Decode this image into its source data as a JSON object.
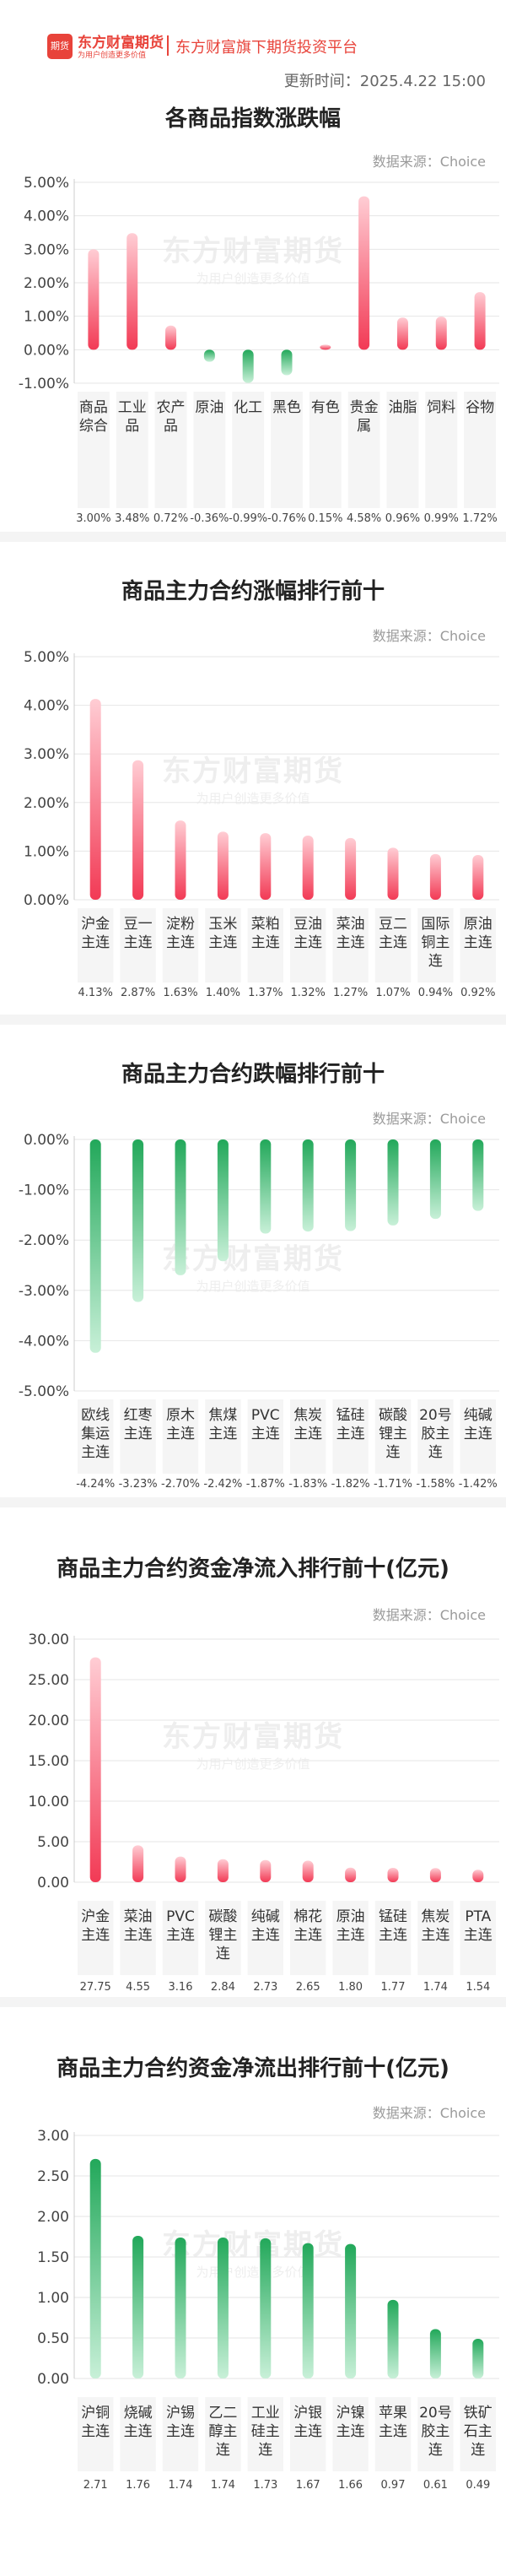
{
  "header": {
    "logo_icon_text": "期货",
    "brand_name": "东方财富期货",
    "brand_slogan": "为用户创造更多价值",
    "platform": "东方财富旗下期货投资平台",
    "update_time": "更新时间：2025.4.22 15:00"
  },
  "source_label": "数据来源：Choice",
  "watermark": {
    "name": "东方财富期货",
    "slogan": "为用户创造更多价值"
  },
  "colors": {
    "up_dark": "#f23a55",
    "up_light": "#ffcdd4",
    "down_dark": "#22a85a",
    "down_light": "#c8f0d8"
  },
  "chart_data": [
    {
      "type": "bar",
      "title": "各商品指数涨跌幅",
      "categories": [
        "商品\n综合",
        "工业\n品",
        "农产\n品",
        "原油",
        "化工",
        "黑色",
        "有色",
        "贵金\n属",
        "油脂",
        "饲料",
        "谷物"
      ],
      "values": [
        3.0,
        3.48,
        0.72,
        -0.36,
        -0.99,
        -0.76,
        0.15,
        4.58,
        0.96,
        0.99,
        1.72
      ],
      "value_labels": [
        "3.00%",
        "3.48%",
        "0.72%",
        "-0.36%",
        "-0.99%",
        "-0.76%",
        "0.15%",
        "4.58%",
        "0.96%",
        "0.99%",
        "1.72%"
      ],
      "y_ticks": [
        5,
        4,
        3,
        2,
        1,
        0,
        -1
      ],
      "y_tick_labels": [
        "5.00%",
        "4.00%",
        "3.00%",
        "2.00%",
        "1.00%",
        "0.00%",
        "-1.00%"
      ],
      "ylim": [
        -1,
        5
      ],
      "grid": true
    },
    {
      "type": "bar",
      "title": "商品主力合约涨幅排行前十",
      "categories": [
        "沪金\n主连",
        "豆一\n主连",
        "淀粉\n主连",
        "玉米\n主连",
        "菜粕\n主连",
        "豆油\n主连",
        "菜油\n主连",
        "豆二\n主连",
        "国际\n铜主\n连",
        "原油\n主连"
      ],
      "values": [
        4.13,
        2.87,
        1.63,
        1.4,
        1.37,
        1.32,
        1.27,
        1.07,
        0.94,
        0.92
      ],
      "value_labels": [
        "4.13%",
        "2.87%",
        "1.63%",
        "1.40%",
        "1.37%",
        "1.32%",
        "1.27%",
        "1.07%",
        "0.94%",
        "0.92%"
      ],
      "y_ticks": [
        5,
        4,
        3,
        2,
        1,
        0
      ],
      "y_tick_labels": [
        "5.00%",
        "4.00%",
        "3.00%",
        "2.00%",
        "1.00%",
        "0.00%"
      ],
      "ylim": [
        0,
        5
      ],
      "grid": true
    },
    {
      "type": "bar",
      "title": "商品主力合约跌幅排行前十",
      "categories": [
        "欧线\n集运\n主连",
        "红枣\n主连",
        "原木\n主连",
        "焦煤\n主连",
        "PVC\n主连",
        "焦炭\n主连",
        "锰硅\n主连",
        "碳酸\n锂主\n连",
        "20号\n胶主\n连",
        "纯碱\n主连"
      ],
      "values": [
        -4.24,
        -3.23,
        -2.7,
        -2.42,
        -1.87,
        -1.83,
        -1.82,
        -1.71,
        -1.58,
        -1.42
      ],
      "value_labels": [
        "-4.24%",
        "-3.23%",
        "-2.70%",
        "-2.42%",
        "-1.87%",
        "-1.83%",
        "-1.82%",
        "-1.71%",
        "-1.58%",
        "-1.42%"
      ],
      "y_ticks": [
        0,
        -1,
        -2,
        -3,
        -4,
        -5
      ],
      "y_tick_labels": [
        "0.00%",
        "-1.00%",
        "-2.00%",
        "-3.00%",
        "-4.00%",
        "-5.00%"
      ],
      "ylim": [
        -5,
        0
      ],
      "grid": true
    },
    {
      "type": "bar",
      "title": "商品主力合约资金净流入排行前十(亿元)",
      "categories": [
        "沪金\n主连",
        "菜油\n主连",
        "PVC\n主连",
        "碳酸\n锂主\n连",
        "纯碱\n主连",
        "棉花\n主连",
        "原油\n主连",
        "锰硅\n主连",
        "焦炭\n主连",
        "PTA\n主连"
      ],
      "values": [
        27.75,
        4.55,
        3.16,
        2.84,
        2.73,
        2.65,
        1.8,
        1.77,
        1.74,
        1.54
      ],
      "value_labels": [
        "27.75",
        "4.55",
        "3.16",
        "2.84",
        "2.73",
        "2.65",
        "1.80",
        "1.77",
        "1.74",
        "1.54"
      ],
      "y_ticks": [
        30,
        25,
        20,
        15,
        10,
        5,
        0
      ],
      "y_tick_labels": [
        "30.00",
        "25.00",
        "20.00",
        "15.00",
        "10.00",
        "5.00",
        "0.00"
      ],
      "ylim": [
        0,
        30
      ],
      "grid": true
    },
    {
      "type": "bar",
      "title": "商品主力合约资金净流出排行前十(亿元)",
      "categories": [
        "沪铜\n主连",
        "烧碱\n主连",
        "沪锡\n主连",
        "乙二\n醇主\n连",
        "工业\n硅主\n连",
        "沪银\n主连",
        "沪镍\n主连",
        "苹果\n主连",
        "20号\n胶主\n连",
        "铁矿\n石主\n连"
      ],
      "values": [
        2.71,
        1.76,
        1.74,
        1.74,
        1.73,
        1.67,
        1.66,
        0.97,
        0.61,
        0.49
      ],
      "value_labels": [
        "2.71",
        "1.76",
        "1.74",
        "1.74",
        "1.73",
        "1.67",
        "1.66",
        "0.97",
        "0.61",
        "0.49"
      ],
      "y_ticks": [
        3,
        2.5,
        2,
        1.5,
        1,
        0.5,
        0
      ],
      "y_tick_labels": [
        "3.00",
        "2.50",
        "2.00",
        "1.50",
        "1.00",
        "0.50",
        "0.00"
      ],
      "ylim": [
        0,
        3
      ],
      "grid": true,
      "bar_color": "green"
    }
  ]
}
